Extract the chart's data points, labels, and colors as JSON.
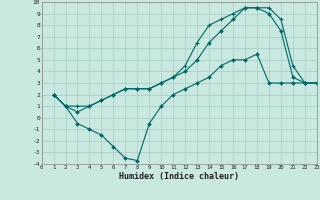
{
  "xlabel": "Humidex (Indice chaleur)",
  "xlim": [
    0,
    23
  ],
  "ylim": [
    -4,
    10
  ],
  "bg_color": "#c8e8e0",
  "grid_color": "#aaccc4",
  "line_color": "#006868",
  "line1_x": [
    1,
    2,
    3,
    4,
    5,
    6,
    7,
    8,
    9,
    10,
    11,
    12,
    13,
    14,
    15,
    16,
    17,
    18,
    19,
    20,
    21,
    22,
    23
  ],
  "line1_y": [
    2,
    1,
    -0.5,
    -1,
    -1.5,
    -2.5,
    -3.5,
    -3.7,
    -0.5,
    1,
    2,
    2.5,
    3,
    3.5,
    4.5,
    5,
    5,
    5.5,
    3,
    3,
    3,
    3,
    3
  ],
  "line2_x": [
    1,
    2,
    3,
    4,
    5,
    6,
    7,
    8,
    9,
    10,
    11,
    12,
    13,
    14,
    15,
    16,
    17,
    18,
    19,
    20,
    21,
    22,
    23
  ],
  "line2_y": [
    2,
    1,
    0.5,
    1,
    1.5,
    2,
    2.5,
    2.5,
    2.5,
    3,
    3.5,
    4,
    5,
    6.5,
    7.5,
    8.5,
    9.5,
    9.5,
    9,
    7.5,
    3.5,
    3,
    3
  ],
  "line3_x": [
    1,
    2,
    3,
    4,
    5,
    6,
    7,
    8,
    9,
    10,
    11,
    12,
    13,
    14,
    15,
    16,
    17,
    18,
    19,
    20,
    21,
    22,
    23
  ],
  "line3_y": [
    2,
    1,
    1,
    1,
    1.5,
    2,
    2.5,
    2.5,
    2.5,
    3,
    3.5,
    4.5,
    6.5,
    8,
    8.5,
    9,
    9.5,
    9.5,
    9.5,
    8.5,
    4.5,
    3,
    3
  ],
  "xticks": [
    0,
    1,
    2,
    3,
    4,
    5,
    6,
    7,
    8,
    9,
    10,
    11,
    12,
    13,
    14,
    15,
    16,
    17,
    18,
    19,
    20,
    21,
    22,
    23
  ],
  "yticks": [
    -4,
    -3,
    -2,
    -1,
    0,
    1,
    2,
    3,
    4,
    5,
    6,
    7,
    8,
    9,
    10
  ]
}
